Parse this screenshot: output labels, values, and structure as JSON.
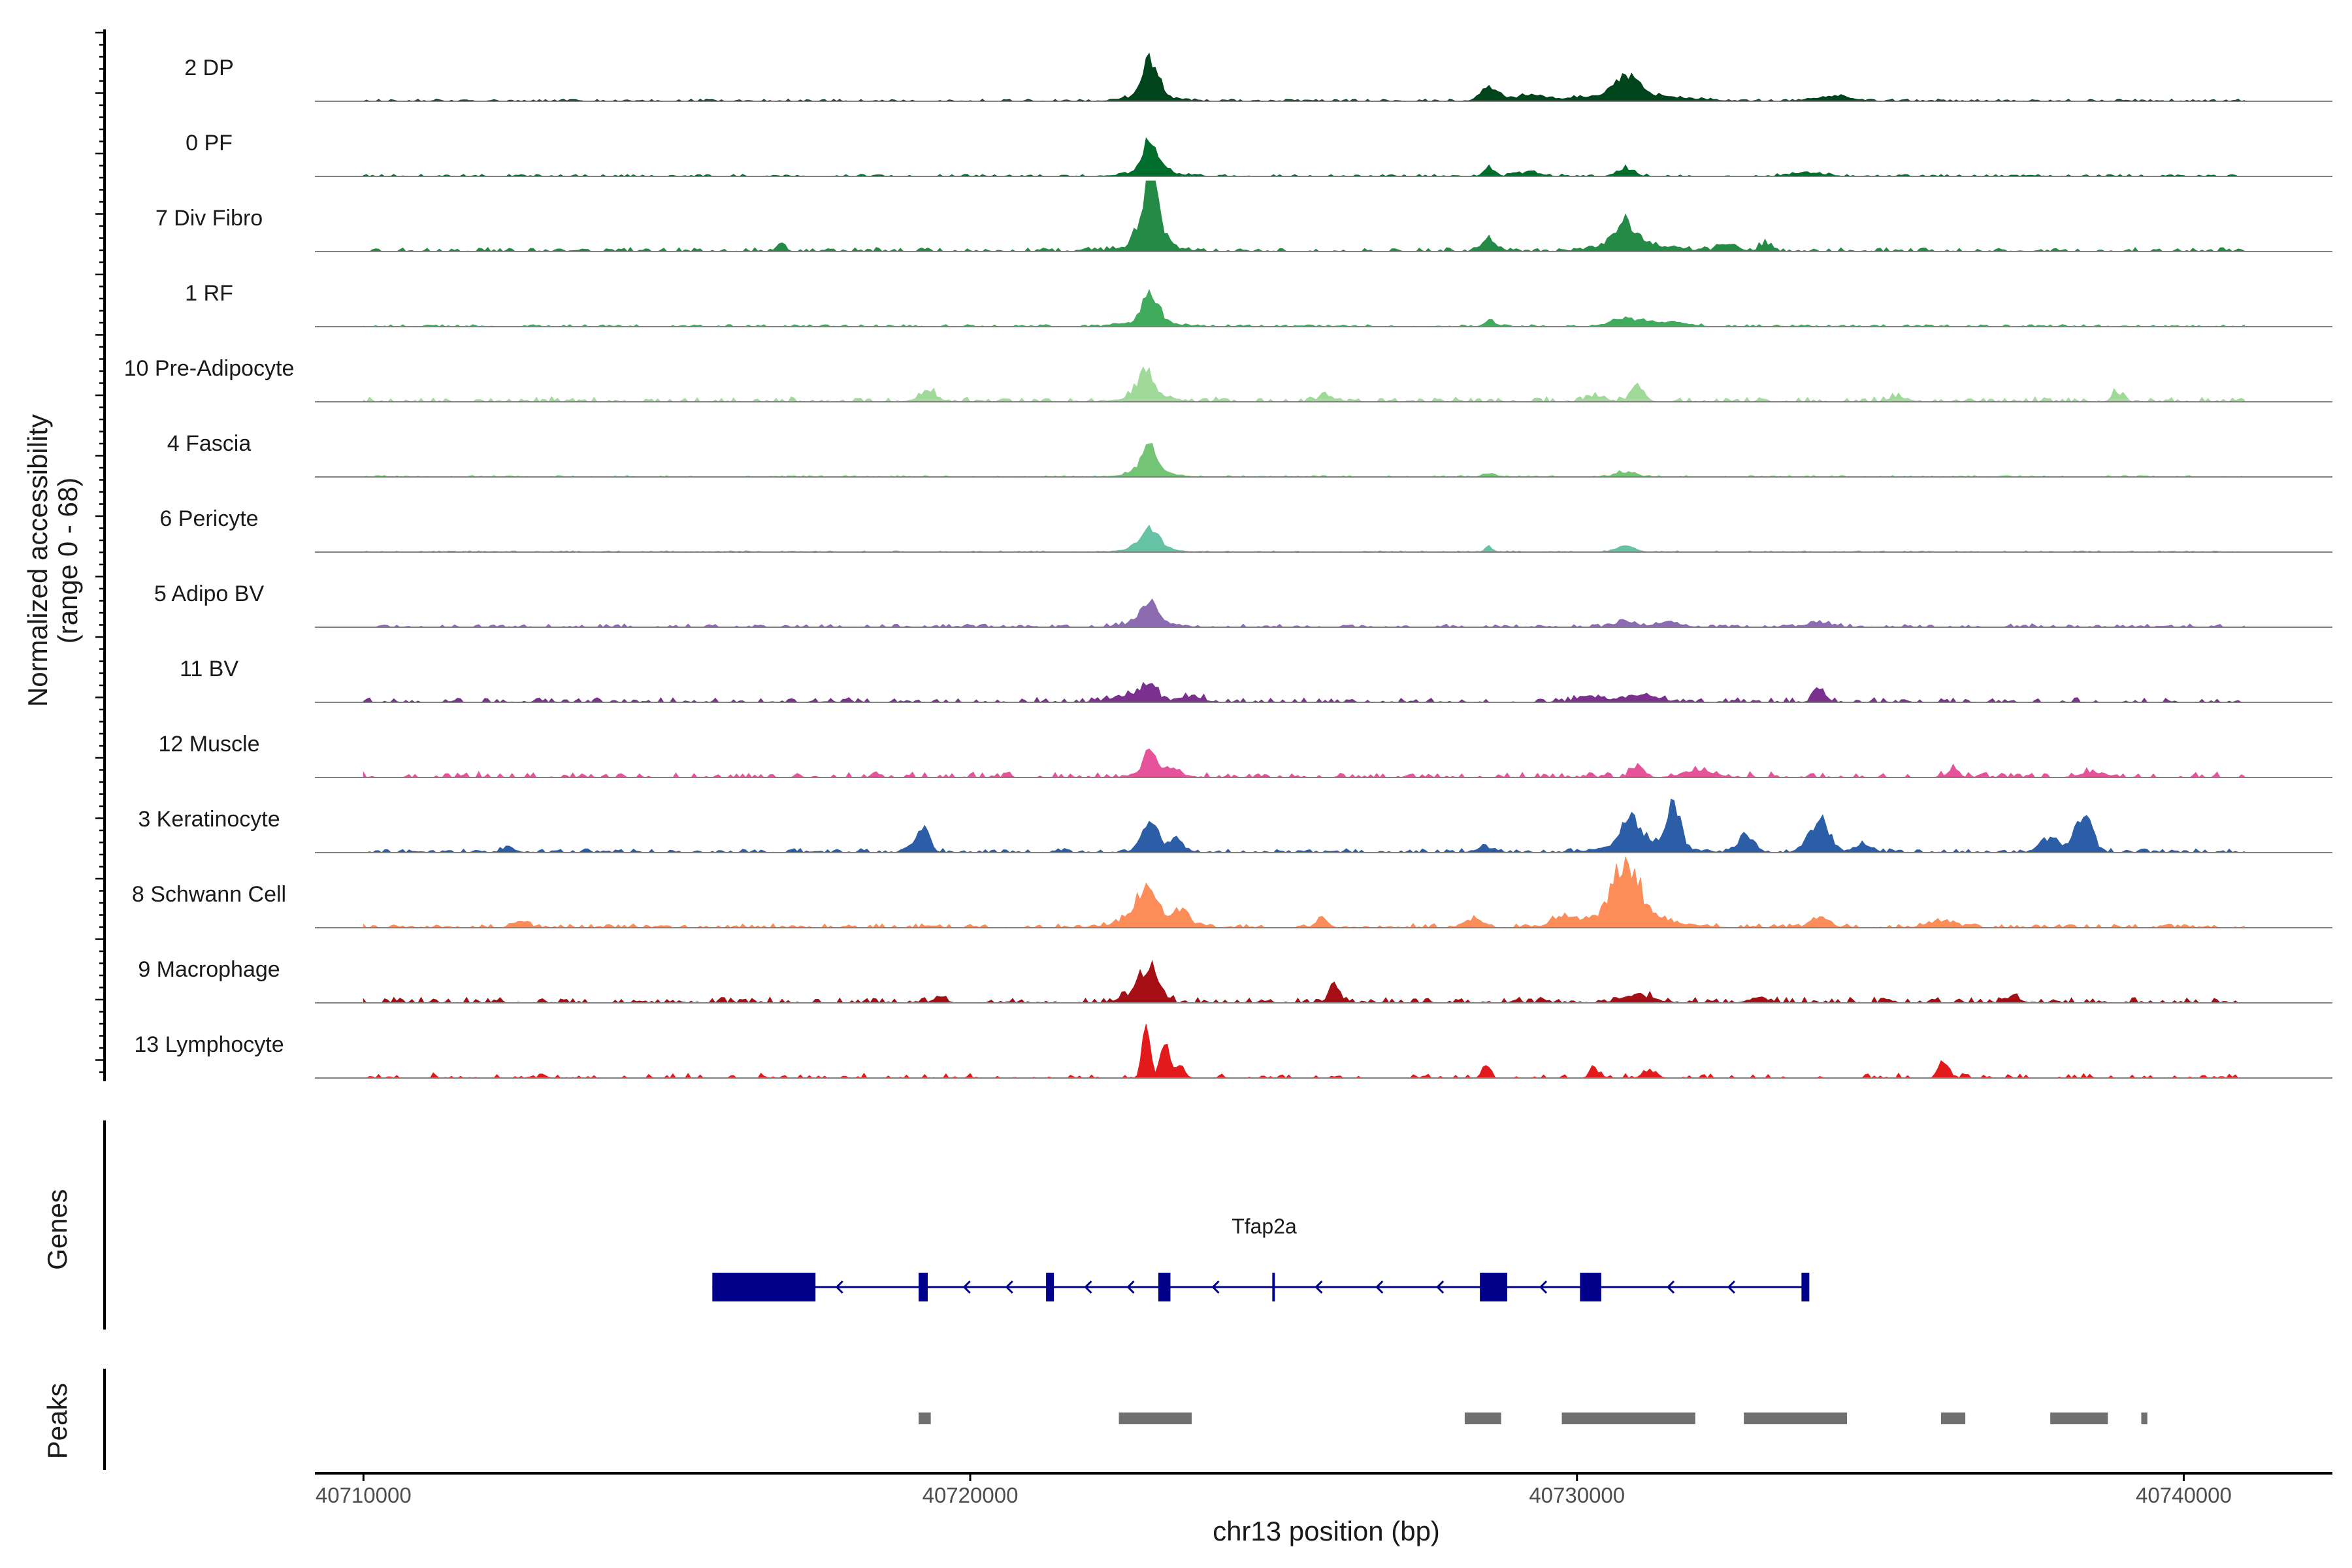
{
  "chart_data": {
    "type": "area",
    "title": "",
    "region": "chr13",
    "xlabel": "chr13 position (bp)",
    "ylabel_line1": "Normalized accessibility",
    "ylabel_line2": "(range 0 - 68)",
    "y_range": [
      0,
      68
    ],
    "xlim": [
      40709200,
      40742450
    ],
    "data_x_range": [
      40710000,
      40741000
    ],
    "x_ticks": [
      40710000,
      40720000,
      40730000,
      40740000
    ],
    "x_tick_labels": [
      "40710000",
      "40720000",
      "40730000",
      "40740000"
    ],
    "series": [
      {
        "name": "2 DP",
        "color": "#00441b",
        "peaks": [
          [
            40722970,
            0.5,
            120
          ],
          [
            40722970,
            0.08,
            350
          ],
          [
            40728550,
            0.17,
            140
          ],
          [
            40730800,
            0.27,
            180
          ],
          [
            40730900,
            0.1,
            700
          ],
          [
            40729200,
            0.07,
            300
          ],
          [
            40734200,
            0.07,
            300
          ]
        ],
        "noise": 0.03,
        "dens": 0.6
      },
      {
        "name": "0 PF",
        "color": "#006d2c",
        "peaks": [
          [
            40722970,
            0.42,
            130
          ],
          [
            40722970,
            0.08,
            330
          ],
          [
            40728550,
            0.14,
            80
          ],
          [
            40730800,
            0.11,
            130
          ],
          [
            40729200,
            0.05,
            200
          ],
          [
            40733800,
            0.05,
            250
          ]
        ],
        "noise": 0.03,
        "dens": 0.45
      },
      {
        "name": "7 Div Fibro",
        "color": "#238b45",
        "peaks": [
          [
            40722970,
            0.92,
            140
          ],
          [
            40722970,
            0.12,
            350
          ],
          [
            40728550,
            0.18,
            110
          ],
          [
            40730800,
            0.3,
            150
          ],
          [
            40730950,
            0.12,
            500
          ],
          [
            40716880,
            0.12,
            70
          ],
          [
            40732500,
            0.1,
            150
          ],
          [
            40733100,
            0.1,
            100
          ]
        ],
        "noise": 0.05,
        "dens": 0.6
      },
      {
        "name": "1 RF",
        "color": "#41ab5d",
        "peaks": [
          [
            40722970,
            0.4,
            130
          ],
          [
            40722970,
            0.08,
            330
          ],
          [
            40728550,
            0.09,
            80
          ],
          [
            40730800,
            0.11,
            250
          ],
          [
            40731500,
            0.06,
            300
          ]
        ],
        "noise": 0.03,
        "dens": 0.5
      },
      {
        "name": "10 Pre-Adipocyte",
        "color": "#a1d99b",
        "peaks": [
          [
            40722900,
            0.35,
            120
          ],
          [
            40722900,
            0.08,
            350
          ],
          [
            40719300,
            0.15,
            150
          ],
          [
            40731000,
            0.25,
            100
          ],
          [
            40738900,
            0.14,
            80
          ],
          [
            40730300,
            0.08,
            150
          ],
          [
            40725900,
            0.07,
            150
          ],
          [
            40735300,
            0.07,
            150
          ]
        ],
        "noise": 0.06,
        "dens": 0.5
      },
      {
        "name": "4 Fascia",
        "color": "#74c476",
        "peaks": [
          [
            40722950,
            0.35,
            130
          ],
          [
            40722950,
            0.07,
            330
          ],
          [
            40730800,
            0.07,
            150
          ],
          [
            40728550,
            0.05,
            100
          ]
        ],
        "noise": 0.02,
        "dens": 0.4
      },
      {
        "name": "6 Pericyte",
        "color": "#66c2a4",
        "peaks": [
          [
            40722950,
            0.3,
            150
          ],
          [
            40722950,
            0.06,
            330
          ],
          [
            40730800,
            0.08,
            150
          ],
          [
            40728550,
            0.06,
            70
          ]
        ],
        "noise": 0.02,
        "dens": 0.4
      },
      {
        "name": "5 Adipo BV",
        "color": "#8c6bb1",
        "peaks": [
          [
            40722950,
            0.3,
            120
          ],
          [
            40722950,
            0.08,
            330
          ],
          [
            40730800,
            0.08,
            150
          ],
          [
            40731500,
            0.07,
            200
          ],
          [
            40734000,
            0.06,
            200
          ]
        ],
        "noise": 0.04,
        "dens": 0.5
      },
      {
        "name": "11 BV",
        "color": "#7b2f8e",
        "peaks": [
          [
            40722950,
            0.22,
            130
          ],
          [
            40722600,
            0.1,
            250
          ],
          [
            40723600,
            0.08,
            200
          ],
          [
            40734000,
            0.15,
            100
          ],
          [
            40731000,
            0.1,
            300
          ],
          [
            40730200,
            0.07,
            200
          ]
        ],
        "noise": 0.06,
        "dens": 0.45
      },
      {
        "name": "12 Muscle",
        "color": "#e7539a",
        "peaks": [
          [
            40722950,
            0.4,
            100
          ],
          [
            40723300,
            0.12,
            150
          ],
          [
            40731000,
            0.18,
            100
          ],
          [
            40736200,
            0.15,
            80
          ],
          [
            40732000,
            0.1,
            250
          ],
          [
            40738500,
            0.08,
            200
          ]
        ],
        "noise": 0.07,
        "dens": 0.45
      },
      {
        "name": "3 Keratinocyte",
        "color": "#2b5ea7",
        "peaks": [
          [
            40722970,
            0.52,
            120
          ],
          [
            40723400,
            0.2,
            100
          ],
          [
            40719200,
            0.35,
            110
          ],
          [
            40730900,
            0.35,
            150
          ],
          [
            40731600,
            0.62,
            100
          ],
          [
            40732800,
            0.25,
            120
          ],
          [
            40734000,
            0.45,
            160
          ],
          [
            40738350,
            0.55,
            130
          ],
          [
            40737800,
            0.22,
            150
          ],
          [
            40731100,
            0.14,
            500
          ],
          [
            40712400,
            0.08,
            100
          ],
          [
            40728500,
            0.07,
            150
          ],
          [
            40734700,
            0.1,
            150
          ]
        ],
        "noise": 0.05,
        "dens": 0.6
      },
      {
        "name": "8 Schwann Cell",
        "color": "#fc8d59",
        "peaks": [
          [
            40722900,
            0.42,
            180
          ],
          [
            40722900,
            0.1,
            450
          ],
          [
            40723500,
            0.2,
            120
          ],
          [
            40730800,
            0.82,
            200
          ],
          [
            40730800,
            0.18,
            650
          ],
          [
            40729800,
            0.14,
            150
          ],
          [
            40728300,
            0.12,
            150
          ],
          [
            40725800,
            0.15,
            90
          ],
          [
            40734000,
            0.13,
            150
          ],
          [
            40736000,
            0.1,
            200
          ],
          [
            40712600,
            0.08,
            120
          ]
        ],
        "noise": 0.05,
        "dens": 0.55
      },
      {
        "name": "9 Macrophage",
        "color": "#a50f15",
        "peaks": [
          [
            40722970,
            0.48,
            150
          ],
          [
            40722700,
            0.12,
            200
          ],
          [
            40726000,
            0.28,
            80
          ],
          [
            40719500,
            0.07,
            100
          ],
          [
            40731000,
            0.1,
            250
          ],
          [
            40737200,
            0.1,
            100
          ],
          [
            40733000,
            0.08,
            150
          ]
        ],
        "noise": 0.07,
        "dens": 0.45
      },
      {
        "name": "13 Lymphocyte",
        "color": "#e31a1c",
        "peaks": [
          [
            40722900,
            0.82,
            60
          ],
          [
            40723200,
            0.5,
            70
          ],
          [
            40723450,
            0.18,
            80
          ],
          [
            40728500,
            0.2,
            60
          ],
          [
            40736000,
            0.22,
            60
          ],
          [
            40736100,
            0.15,
            60
          ],
          [
            40730300,
            0.12,
            80
          ],
          [
            40731200,
            0.12,
            100
          ]
        ],
        "noise": 0.06,
        "dens": 0.3
      }
    ],
    "genes": {
      "label": "Genes",
      "gene_name": "Tfap2a",
      "color": "#00008b",
      "strand": "-",
      "start": 40715750,
      "end": 40733800,
      "exons": [
        [
          40715750,
          40717450
        ],
        [
          40719150,
          40719300
        ],
        [
          40721250,
          40721350
        ],
        [
          40723100,
          40723300
        ],
        [
          40728400,
          40728850
        ],
        [
          40730050,
          40730400
        ],
        [
          40733700,
          40733800
        ]
      ],
      "tss_tick": 40725000
    },
    "peaks_track": {
      "label": "Peaks",
      "color": "#707070",
      "regions": [
        [
          40719150,
          40719350
        ],
        [
          40722450,
          40723650
        ],
        [
          40728150,
          40728750
        ],
        [
          40729750,
          40731950
        ],
        [
          40732750,
          40734450
        ],
        [
          40736000,
          40736400
        ],
        [
          40737800,
          40738750
        ],
        [
          40739300,
          40739400
        ]
      ]
    }
  }
}
